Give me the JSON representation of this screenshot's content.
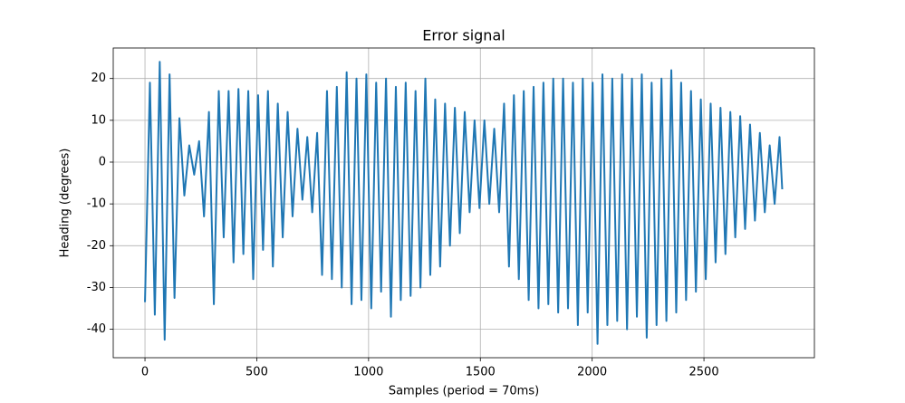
{
  "chart_data": {
    "type": "line",
    "title": "Error signal",
    "xlabel": "Samples (period = 70ms)",
    "ylabel": "Heading (degrees)",
    "x": [
      0,
      22,
      44,
      66,
      88,
      110,
      132,
      154,
      176,
      198,
      220,
      242,
      264,
      286,
      308,
      330,
      352,
      374,
      396,
      418,
      440,
      462,
      484,
      506,
      528,
      550,
      572,
      594,
      616,
      638,
      660,
      682,
      704,
      726,
      748,
      770,
      792,
      814,
      836,
      858,
      880,
      902,
      924,
      946,
      968,
      990,
      1012,
      1034,
      1056,
      1078,
      1100,
      1122,
      1144,
      1166,
      1188,
      1210,
      1232,
      1254,
      1276,
      1298,
      1320,
      1342,
      1364,
      1386,
      1408,
      1430,
      1452,
      1474,
      1496,
      1518,
      1540,
      1562,
      1584,
      1606,
      1628,
      1650,
      1672,
      1694,
      1716,
      1738,
      1760,
      1782,
      1804,
      1826,
      1848,
      1870,
      1892,
      1914,
      1936,
      1958,
      1980,
      2002,
      2024,
      2046,
      2068,
      2090,
      2112,
      2134,
      2156,
      2178,
      2200,
      2222,
      2244,
      2266,
      2288,
      2310,
      2332,
      2354,
      2376,
      2398,
      2420,
      2442,
      2464,
      2486,
      2508,
      2530,
      2552,
      2574,
      2596,
      2618,
      2640,
      2662,
      2684,
      2706,
      2728,
      2750,
      2772,
      2794,
      2816,
      2838,
      2850
    ],
    "series": [
      {
        "name": "Error",
        "color": "#1f77b4",
        "values": [
          -33.5,
          19,
          -36.5,
          24,
          -42.5,
          21,
          -32.5,
          10.5,
          -8,
          4,
          -3,
          5,
          -13,
          12,
          -34,
          17,
          -18,
          17,
          -24,
          17.5,
          -22,
          17,
          -28,
          16,
          -21,
          17,
          -25,
          14,
          -18,
          12,
          -13,
          8,
          -9,
          6,
          -12,
          7,
          -27,
          17,
          -28,
          18,
          -30,
          21.5,
          -34,
          20,
          -33,
          21,
          -35,
          19,
          -31,
          20,
          -37,
          18,
          -33,
          19,
          -32,
          17,
          -30,
          20,
          -27,
          15,
          -25,
          14,
          -20,
          13,
          -17,
          12,
          -12,
          10,
          -11,
          10,
          -10,
          8,
          -12,
          14,
          -25,
          16,
          -28,
          17,
          -33,
          18,
          -35,
          19,
          -34,
          20,
          -36,
          20,
          -35,
          19,
          -39,
          20,
          -36,
          19,
          -43.5,
          21,
          -39,
          20,
          -38,
          21,
          -40,
          20,
          -37,
          21,
          -42,
          19,
          -39,
          20,
          -38,
          22,
          -36,
          19,
          -33,
          17,
          -31,
          15,
          -28,
          14,
          -24,
          13,
          -22,
          12,
          -18,
          11,
          -16,
          9,
          -14,
          7,
          -12,
          4,
          -10,
          6,
          -6.5
        ]
      }
    ],
    "xlim": [
      -142,
      2994
    ],
    "ylim": [
      -46.8,
      27.3
    ],
    "xticks": [
      0,
      500,
      1000,
      1500,
      2000,
      2500
    ],
    "yticks": [
      -40,
      -30,
      -20,
      -10,
      0,
      10,
      20
    ],
    "grid": true
  }
}
